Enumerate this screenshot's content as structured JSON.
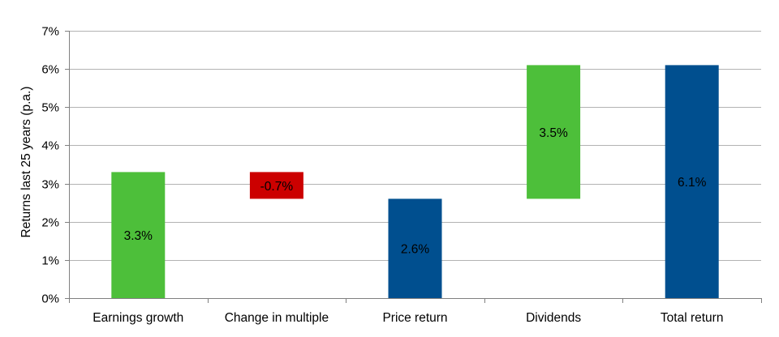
{
  "chart_data": {
    "type": "bar",
    "subtype": "waterfall",
    "ylabel": "Returns last 25 years (p.a.)",
    "xlabel": "",
    "ylim": [
      0,
      7
    ],
    "yticks": [
      "0%",
      "1%",
      "2%",
      "3%",
      "4%",
      "5%",
      "6%",
      "7%"
    ],
    "grid": true,
    "categories": [
      "Earnings growth",
      "Change in multiple",
      "Price return",
      "Dividends",
      "Total return"
    ],
    "bars": [
      {
        "base": 0.0,
        "top": 3.3,
        "label": "3.3%",
        "color": "#4dbf3a"
      },
      {
        "base": 2.6,
        "top": 3.3,
        "label": "-0.7%",
        "color": "#cc0000"
      },
      {
        "base": 0.0,
        "top": 2.6,
        "label": "2.6%",
        "color": "#004f8f"
      },
      {
        "base": 2.6,
        "top": 6.1,
        "label": "3.5%",
        "color": "#4dbf3a"
      },
      {
        "base": 0.0,
        "top": 6.1,
        "label": "6.1%",
        "color": "#004f8f"
      }
    ],
    "colors": {
      "increase": "#4dbf3a",
      "decrease": "#cc0000",
      "total": "#004f8f",
      "grid": "#b3b3b3"
    }
  }
}
